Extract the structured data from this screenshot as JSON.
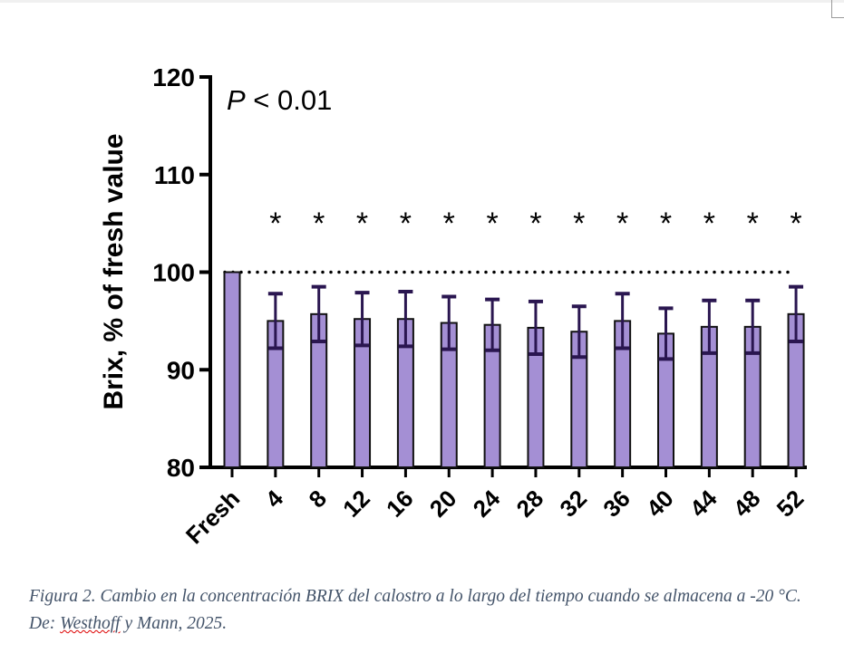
{
  "chart_data": {
    "type": "bar",
    "ylabel": "Brix, % of fresh value",
    "xlabel": "",
    "ylim": [
      80,
      120
    ],
    "yticks": [
      80,
      90,
      100,
      110,
      120
    ],
    "categories": [
      "Fresh",
      "4",
      "8",
      "12",
      "16",
      "20",
      "24",
      "28",
      "32",
      "36",
      "40",
      "44",
      "48",
      "52"
    ],
    "values": [
      100,
      95.0,
      95.7,
      95.2,
      95.2,
      94.8,
      94.6,
      94.3,
      93.9,
      95.0,
      93.7,
      94.4,
      94.4,
      95.7
    ],
    "error_upper": [
      0,
      97.8,
      98.5,
      97.9,
      98.0,
      97.5,
      97.2,
      97.0,
      96.5,
      97.8,
      96.3,
      97.1,
      97.1,
      98.5
    ],
    "significance": [
      "",
      "*",
      "*",
      "*",
      "*",
      "*",
      "*",
      "*",
      "*",
      "*",
      "*",
      "*",
      "*",
      "*"
    ],
    "reference_line": 100,
    "annotation_p": "P",
    "annotation_rest": " < 0.01",
    "bar_color": "#a48fd4",
    "error_color": "#2a1650"
  },
  "caption": {
    "part1": "Figura 2. Cambio en la concentración BRIX del calostro a lo largo del tiempo cuando se almacena a -20 °C. De: ",
    "author": "Westhoff",
    "part2": " y Mann, 2025."
  }
}
